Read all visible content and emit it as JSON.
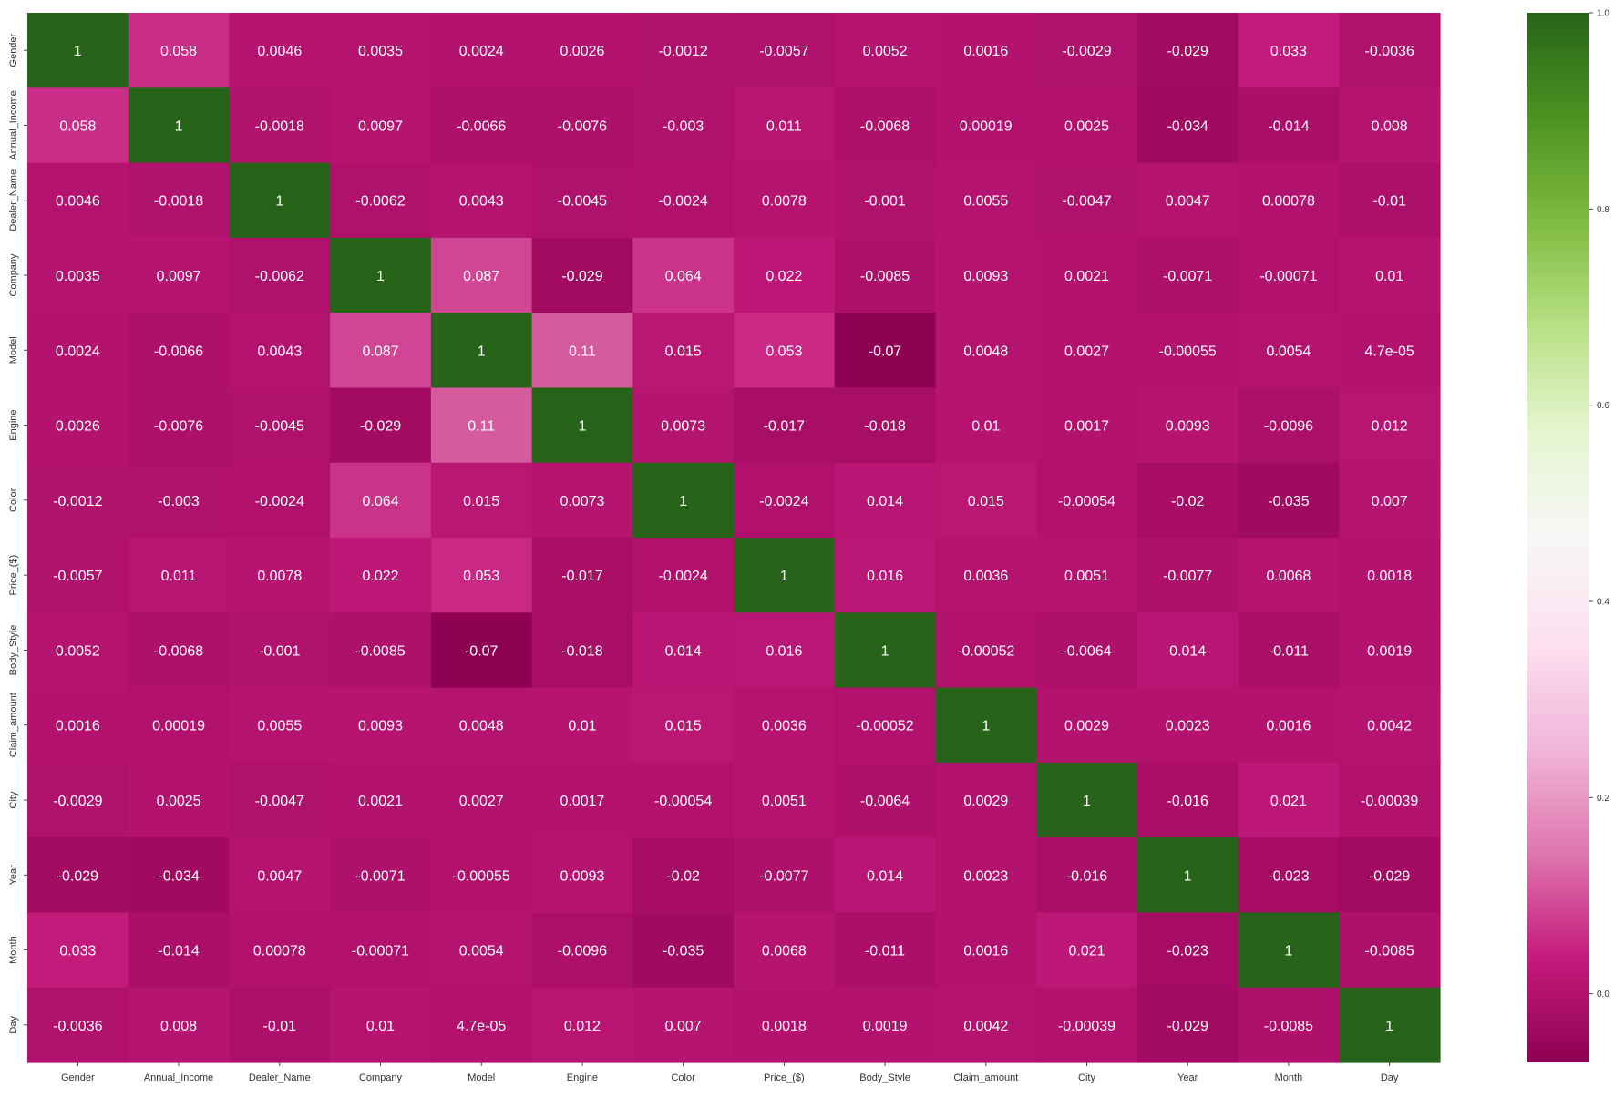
{
  "chart_data": {
    "type": "heatmap",
    "title": "",
    "xlabel": "",
    "ylabel": "",
    "variables": [
      "Gender",
      "Annual_Income",
      "Dealer_Name",
      "Company",
      "Model",
      "Engine",
      "Color",
      "Price_($)",
      "Body_Style",
      "Claim_amount",
      "City",
      "Year",
      "Month",
      "Day"
    ],
    "values": [
      [
        1,
        0.058,
        0.0046,
        0.0035,
        0.0024,
        0.0026,
        -0.0012,
        -0.0057,
        0.0052,
        0.0016,
        -0.0029,
        -0.029,
        0.033,
        -0.0036
      ],
      [
        0.058,
        1,
        -0.0018,
        0.0097,
        -0.0066,
        -0.0076,
        -0.003,
        0.011,
        -0.0068,
        0.00019,
        0.0025,
        -0.034,
        -0.014,
        0.008
      ],
      [
        0.0046,
        -0.0018,
        1,
        -0.0062,
        0.0043,
        -0.0045,
        -0.0024,
        0.0078,
        -0.001,
        0.0055,
        -0.0047,
        0.0047,
        0.00078,
        -0.01
      ],
      [
        0.0035,
        0.0097,
        -0.0062,
        1,
        0.087,
        -0.029,
        0.064,
        0.022,
        -0.0085,
        0.0093,
        0.0021,
        -0.0071,
        -0.00071,
        0.01
      ],
      [
        0.0024,
        -0.0066,
        0.0043,
        0.087,
        1,
        0.11,
        0.015,
        0.053,
        -0.07,
        0.0048,
        0.0027,
        -0.00055,
        0.0054,
        4.7e-05
      ],
      [
        0.0026,
        -0.0076,
        -0.0045,
        -0.029,
        0.11,
        1,
        0.0073,
        -0.017,
        -0.018,
        0.01,
        0.0017,
        0.0093,
        -0.0096,
        0.012
      ],
      [
        -0.0012,
        -0.003,
        -0.0024,
        0.064,
        0.015,
        0.0073,
        1,
        -0.0024,
        0.014,
        0.015,
        -0.00054,
        -0.02,
        -0.035,
        0.007
      ],
      [
        -0.0057,
        0.011,
        0.0078,
        0.022,
        0.053,
        -0.017,
        -0.0024,
        1,
        0.016,
        0.0036,
        0.0051,
        -0.0077,
        0.0068,
        0.0018
      ],
      [
        0.0052,
        -0.0068,
        -0.001,
        -0.0085,
        -0.07,
        -0.018,
        0.014,
        0.016,
        1,
        -0.00052,
        -0.0064,
        0.014,
        -0.011,
        0.0019
      ],
      [
        0.0016,
        0.00019,
        0.0055,
        0.0093,
        0.0048,
        0.01,
        0.015,
        0.0036,
        -0.00052,
        1,
        0.0029,
        0.0023,
        0.0016,
        0.0042
      ],
      [
        -0.0029,
        0.0025,
        -0.0047,
        0.0021,
        0.0027,
        0.0017,
        -0.00054,
        0.0051,
        -0.0064,
        0.0029,
        1,
        -0.016,
        0.021,
        -0.00039
      ],
      [
        -0.029,
        -0.034,
        0.0047,
        -0.0071,
        -0.00055,
        0.0093,
        -0.02,
        -0.0077,
        0.014,
        0.0023,
        -0.016,
        1,
        -0.023,
        -0.029
      ],
      [
        0.033,
        -0.014,
        0.00078,
        -0.00071,
        0.0054,
        -0.0096,
        -0.035,
        0.0068,
        -0.011,
        0.0016,
        0.021,
        -0.023,
        1,
        -0.0085
      ],
      [
        -0.0036,
        0.008,
        -0.01,
        0.01,
        4.7e-05,
        0.012,
        0.007,
        0.0018,
        0.0019,
        0.0042,
        -0.00039,
        -0.029,
        -0.0085,
        1
      ]
    ],
    "cell_labels": [
      [
        "1",
        "0.058",
        "0.0046",
        "0.0035",
        "0.0024",
        "0.0026",
        "-0.0012",
        "-0.0057",
        "0.0052",
        "0.0016",
        "-0.0029",
        "-0.029",
        "0.033",
        "-0.0036"
      ],
      [
        "0.058",
        "1",
        "-0.0018",
        "0.0097",
        "-0.0066",
        "-0.0076",
        "-0.003",
        "0.011",
        "-0.0068",
        "0.00019",
        "0.0025",
        "-0.034",
        "-0.014",
        "0.008"
      ],
      [
        "0.0046",
        "-0.0018",
        "1",
        "-0.0062",
        "0.0043",
        "-0.0045",
        "-0.0024",
        "0.0078",
        "-0.001",
        "0.0055",
        "-0.0047",
        "0.0047",
        "0.00078",
        "-0.01"
      ],
      [
        "0.0035",
        "0.0097",
        "-0.0062",
        "1",
        "0.087",
        "-0.029",
        "0.064",
        "0.022",
        "-0.0085",
        "0.0093",
        "0.0021",
        "-0.0071",
        "-0.00071",
        "0.01"
      ],
      [
        "0.0024",
        "-0.0066",
        "0.0043",
        "0.087",
        "1",
        "0.11",
        "0.015",
        "0.053",
        "-0.07",
        "0.0048",
        "0.0027",
        "-0.00055",
        "0.0054",
        "4.7e-05"
      ],
      [
        "0.0026",
        "-0.0076",
        "-0.0045",
        "-0.029",
        "0.11",
        "1",
        "0.0073",
        "-0.017",
        "-0.018",
        "0.01",
        "0.0017",
        "0.0093",
        "-0.0096",
        "0.012"
      ],
      [
        "-0.0012",
        "-0.003",
        "-0.0024",
        "0.064",
        "0.015",
        "0.0073",
        "1",
        "-0.0024",
        "0.014",
        "0.015",
        "-0.00054",
        "-0.02",
        "-0.035",
        "0.007"
      ],
      [
        "-0.0057",
        "0.011",
        "0.0078",
        "0.022",
        "0.053",
        "-0.017",
        "-0.0024",
        "1",
        "0.016",
        "0.0036",
        "0.0051",
        "-0.0077",
        "0.0068",
        "0.0018"
      ],
      [
        "0.0052",
        "-0.0068",
        "-0.001",
        "-0.0085",
        "-0.07",
        "-0.018",
        "0.014",
        "0.016",
        "1",
        "-0.00052",
        "-0.0064",
        "0.014",
        "-0.011",
        "0.0019"
      ],
      [
        "0.0016",
        "0.00019",
        "0.0055",
        "0.0093",
        "0.0048",
        "0.01",
        "0.015",
        "0.0036",
        "-0.00052",
        "1",
        "0.0029",
        "0.0023",
        "0.0016",
        "0.0042"
      ],
      [
        "-0.0029",
        "0.0025",
        "-0.0047",
        "0.0021",
        "0.0027",
        "0.0017",
        "-0.00054",
        "0.0051",
        "-0.0064",
        "0.0029",
        "1",
        "-0.016",
        "0.021",
        "-0.00039"
      ],
      [
        "-0.029",
        "-0.034",
        "0.0047",
        "-0.0071",
        "-0.00055",
        "0.0093",
        "-0.02",
        "-0.0077",
        "0.014",
        "0.0023",
        "-0.016",
        "1",
        "-0.023",
        "-0.029"
      ],
      [
        "0.033",
        "-0.014",
        "0.00078",
        "-0.00071",
        "0.0054",
        "-0.0096",
        "-0.035",
        "0.0068",
        "-0.011",
        "0.0016",
        "0.021",
        "-0.023",
        "1",
        "-0.0085"
      ],
      [
        "-0.0036",
        "0.008",
        "-0.01",
        "0.01",
        "4.7e-05",
        "0.012",
        "0.007",
        "0.0018",
        "0.0019",
        "0.0042",
        "-0.00039",
        "-0.029",
        "-0.0085",
        "1"
      ]
    ],
    "colormap": "PiYG",
    "vmin": -0.07,
    "vmax": 1.0,
    "colorbar": {
      "ticks": [
        0.0,
        0.2,
        0.4,
        0.6,
        0.8,
        1.0
      ],
      "tick_labels": [
        "0.0",
        "0.2",
        "0.4",
        "0.6",
        "0.8",
        "1.0"
      ]
    },
    "grid": false,
    "legend": "colorbar-right"
  }
}
